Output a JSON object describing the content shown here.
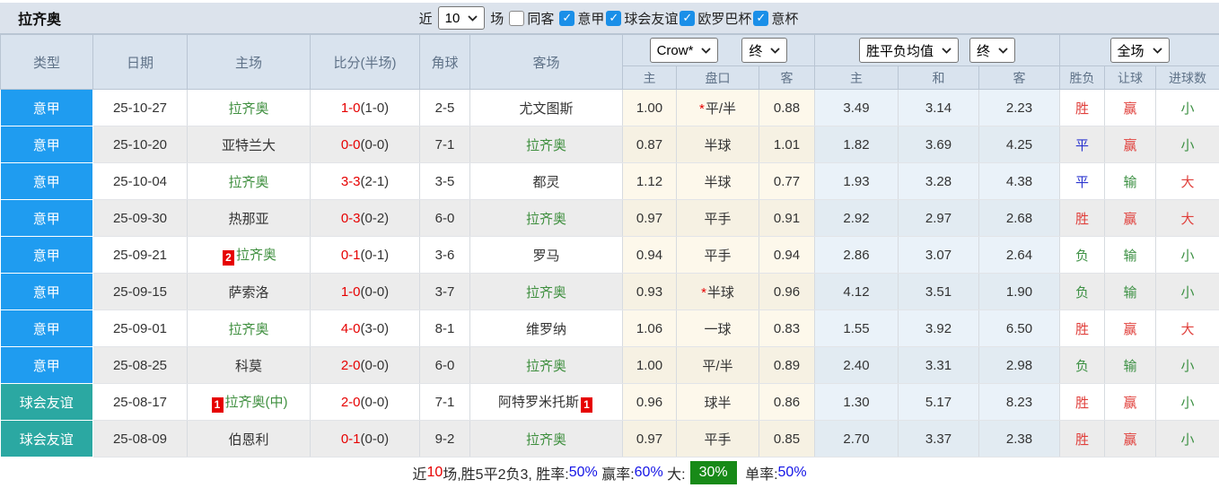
{
  "topbar": {
    "title": "拉齐奥",
    "recent_label": "近",
    "recent_value": "10",
    "unit_label": "场",
    "same_venue": {
      "label": "同客",
      "checked": false
    },
    "filters": [
      {
        "label": "意甲",
        "checked": true
      },
      {
        "label": "球会友谊",
        "checked": true
      },
      {
        "label": "欧罗巴杯",
        "checked": true
      },
      {
        "label": "意杯",
        "checked": true
      }
    ]
  },
  "header": {
    "main_columns": [
      "类型",
      "日期",
      "主场",
      "比分(半场)",
      "角球",
      "客场"
    ],
    "odds_selects": {
      "bookmaker": "Crow*",
      "stage": "终"
    },
    "avg_selects": {
      "label": "胜平负均值",
      "stage": "终"
    },
    "scope_select": "全场",
    "sub_columns": [
      "主",
      "盘口",
      "客",
      "主",
      "和",
      "客",
      "胜负",
      "让球",
      "进球数"
    ]
  },
  "colors": {
    "league_blue": "#1f9cf0",
    "league_teal": "#2ba8a2",
    "score_red": "#e60000",
    "team_green": "#3f8f3f",
    "result_red": "#e0403c",
    "result_green": "#3c9043",
    "result_blue": "#2b35cf",
    "chip_green": "#188a18"
  },
  "table": {
    "rows": [
      {
        "league": "意甲",
        "league_color": "blue",
        "date": "25-10-27",
        "home": "拉齐奥",
        "home_green": true,
        "home_badge": "",
        "score": "1-0",
        "half": "(1-0)",
        "corner": "2-5",
        "away": "尤文图斯",
        "away_green": false,
        "away_badge": "",
        "odds_home": "1.00",
        "handicap": "平/半",
        "handicap_star": true,
        "odds_away": "0.88",
        "avg_home": "3.49",
        "avg_draw": "3.14",
        "avg_away": "2.23",
        "result": "胜",
        "result_color": "red",
        "handicap_result": "赢",
        "handicap_result_color": "red",
        "goals": "小",
        "goals_color": "green"
      },
      {
        "league": "意甲",
        "league_color": "blue",
        "date": "25-10-20",
        "home": "亚特兰大",
        "home_green": false,
        "home_badge": "",
        "score": "0-0",
        "half": "(0-0)",
        "corner": "7-1",
        "away": "拉齐奥",
        "away_green": true,
        "away_badge": "",
        "odds_home": "0.87",
        "handicap": "半球",
        "handicap_star": false,
        "odds_away": "1.01",
        "avg_home": "1.82",
        "avg_draw": "3.69",
        "avg_away": "4.25",
        "result": "平",
        "result_color": "blue",
        "handicap_result": "赢",
        "handicap_result_color": "red",
        "goals": "小",
        "goals_color": "green"
      },
      {
        "league": "意甲",
        "league_color": "blue",
        "date": "25-10-04",
        "home": "拉齐奥",
        "home_green": true,
        "home_badge": "",
        "score": "3-3",
        "half": "(2-1)",
        "corner": "3-5",
        "away": "都灵",
        "away_green": false,
        "away_badge": "",
        "odds_home": "1.12",
        "handicap": "半球",
        "handicap_star": false,
        "odds_away": "0.77",
        "avg_home": "1.93",
        "avg_draw": "3.28",
        "avg_away": "4.38",
        "result": "平",
        "result_color": "blue",
        "handicap_result": "输",
        "handicap_result_color": "green",
        "goals": "大",
        "goals_color": "red"
      },
      {
        "league": "意甲",
        "league_color": "blue",
        "date": "25-09-30",
        "home": "热那亚",
        "home_green": false,
        "home_badge": "",
        "score": "0-3",
        "half": "(0-2)",
        "corner": "6-0",
        "away": "拉齐奥",
        "away_green": true,
        "away_badge": "",
        "odds_home": "0.97",
        "handicap": "平手",
        "handicap_star": false,
        "odds_away": "0.91",
        "avg_home": "2.92",
        "avg_draw": "2.97",
        "avg_away": "2.68",
        "result": "胜",
        "result_color": "red",
        "handicap_result": "赢",
        "handicap_result_color": "red",
        "goals": "大",
        "goals_color": "red"
      },
      {
        "league": "意甲",
        "league_color": "blue",
        "date": "25-09-21",
        "home": "拉齐奥",
        "home_green": true,
        "home_badge": "2",
        "score": "0-1",
        "half": "(0-1)",
        "corner": "3-6",
        "away": "罗马",
        "away_green": false,
        "away_badge": "",
        "odds_home": "0.94",
        "handicap": "平手",
        "handicap_star": false,
        "odds_away": "0.94",
        "avg_home": "2.86",
        "avg_draw": "3.07",
        "avg_away": "2.64",
        "result": "负",
        "result_color": "green",
        "handicap_result": "输",
        "handicap_result_color": "green",
        "goals": "小",
        "goals_color": "green"
      },
      {
        "league": "意甲",
        "league_color": "blue",
        "date": "25-09-15",
        "home": "萨索洛",
        "home_green": false,
        "home_badge": "",
        "score": "1-0",
        "half": "(0-0)",
        "corner": "3-7",
        "away": "拉齐奥",
        "away_green": true,
        "away_badge": "",
        "odds_home": "0.93",
        "handicap": "半球",
        "handicap_star": true,
        "odds_away": "0.96",
        "avg_home": "4.12",
        "avg_draw": "3.51",
        "avg_away": "1.90",
        "result": "负",
        "result_color": "green",
        "handicap_result": "输",
        "handicap_result_color": "green",
        "goals": "小",
        "goals_color": "green"
      },
      {
        "league": "意甲",
        "league_color": "blue",
        "date": "25-09-01",
        "home": "拉齐奥",
        "home_green": true,
        "home_badge": "",
        "score": "4-0",
        "half": "(3-0)",
        "corner": "8-1",
        "away": "维罗纳",
        "away_green": false,
        "away_badge": "",
        "odds_home": "1.06",
        "handicap": "一球",
        "handicap_star": false,
        "odds_away": "0.83",
        "avg_home": "1.55",
        "avg_draw": "3.92",
        "avg_away": "6.50",
        "result": "胜",
        "result_color": "red",
        "handicap_result": "赢",
        "handicap_result_color": "red",
        "goals": "大",
        "goals_color": "red"
      },
      {
        "league": "意甲",
        "league_color": "blue",
        "date": "25-08-25",
        "home": "科莫",
        "home_green": false,
        "home_badge": "",
        "score": "2-0",
        "half": "(0-0)",
        "corner": "6-0",
        "away": "拉齐奥",
        "away_green": true,
        "away_badge": "",
        "odds_home": "1.00",
        "handicap": "平/半",
        "handicap_star": false,
        "odds_away": "0.89",
        "avg_home": "2.40",
        "avg_draw": "3.31",
        "avg_away": "2.98",
        "result": "负",
        "result_color": "green",
        "handicap_result": "输",
        "handicap_result_color": "green",
        "goals": "小",
        "goals_color": "green"
      },
      {
        "league": "球会友谊",
        "league_color": "teal",
        "date": "25-08-17",
        "home": "拉齐奥(中)",
        "home_green": true,
        "home_badge": "1",
        "score": "2-0",
        "half": "(0-0)",
        "corner": "7-1",
        "away": "阿特罗米托斯",
        "away_green": false,
        "away_badge": "1",
        "odds_home": "0.96",
        "handicap": "球半",
        "handicap_star": false,
        "odds_away": "0.86",
        "avg_home": "1.30",
        "avg_draw": "5.17",
        "avg_away": "8.23",
        "result": "胜",
        "result_color": "red",
        "handicap_result": "赢",
        "handicap_result_color": "red",
        "goals": "小",
        "goals_color": "green"
      },
      {
        "league": "球会友谊",
        "league_color": "teal",
        "date": "25-08-09",
        "home": "伯恩利",
        "home_green": false,
        "home_badge": "",
        "score": "0-1",
        "half": "(0-0)",
        "corner": "9-2",
        "away": "拉齐奥",
        "away_green": true,
        "away_badge": "",
        "odds_home": "0.97",
        "handicap": "平手",
        "handicap_star": false,
        "odds_away": "0.85",
        "avg_home": "2.70",
        "avg_draw": "3.37",
        "avg_away": "2.38",
        "result": "胜",
        "result_color": "red",
        "handicap_result": "赢",
        "handicap_result_color": "red",
        "goals": "小",
        "goals_color": "green"
      }
    ]
  },
  "summary": {
    "segments": [
      {
        "text": "近",
        "style": "plain"
      },
      {
        "text": "10",
        "style": "red"
      },
      {
        "text": "场,胜5平2负3, 胜率:",
        "style": "plain"
      },
      {
        "text": "50%",
        "style": "blue"
      },
      {
        "text": " 赢率:",
        "style": "plain"
      },
      {
        "text": "60%",
        "style": "blue"
      },
      {
        "text": " 大:",
        "style": "plain"
      },
      {
        "text": "30%",
        "style": "chip"
      },
      {
        "text": " 单率:",
        "style": "plain"
      },
      {
        "text": "50%",
        "style": "blue"
      }
    ]
  }
}
